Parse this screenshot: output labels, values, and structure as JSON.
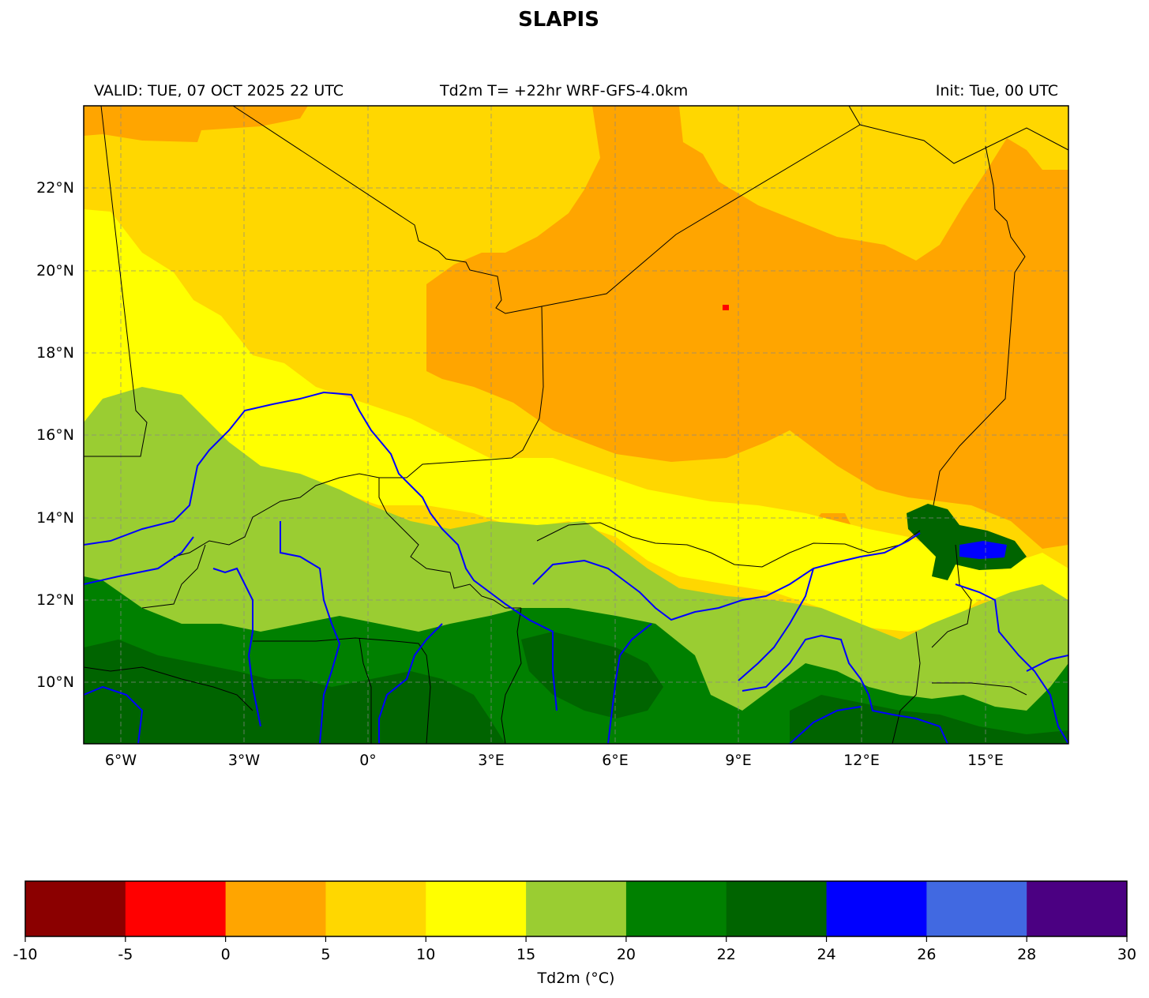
{
  "title": "SLAPIS",
  "header": {
    "valid": "VALID: TUE, 07 OCT 2025 22 UTC",
    "product": "Td2m T= +22hr WRF-GFS-4.0km",
    "init": "Init: Tue, 00 UTC"
  },
  "map": {
    "lon_range": [
      -6.9,
      17.0
    ],
    "lat_range": [
      8.5,
      24.0
    ],
    "gridlines": true,
    "lat_ticks": [
      "10°N",
      "12°N",
      "14°N",
      "16°N",
      "18°N",
      "20°N",
      "22°N"
    ],
    "lon_ticks": [
      "6°W",
      "3°W",
      "0°",
      "3°E",
      "6°E",
      "9°E",
      "12°E",
      "15°E"
    ],
    "colors": {
      "orange": "#ffa500",
      "gold": "#ffd700",
      "yellow": "#ffff00",
      "yellowgreen": "#9acd32",
      "green": "#008000",
      "darkgreen": "#006400",
      "blue": "#0000ff",
      "red": "#ff0000",
      "rivers": "#0000ff",
      "borders": "#000000"
    }
  },
  "colorbar": {
    "label": "Td2m (°C)",
    "ticks": [
      "-10",
      "-5",
      "0",
      "5",
      "10",
      "15",
      "20",
      "22",
      "24",
      "26",
      "28",
      "30"
    ],
    "colors": [
      "#8b0000",
      "#ff0000",
      "#ffa500",
      "#ffd700",
      "#ffff00",
      "#9acd32",
      "#008000",
      "#006400",
      "#0000ff",
      "#4169e1",
      "#4b0082"
    ]
  }
}
